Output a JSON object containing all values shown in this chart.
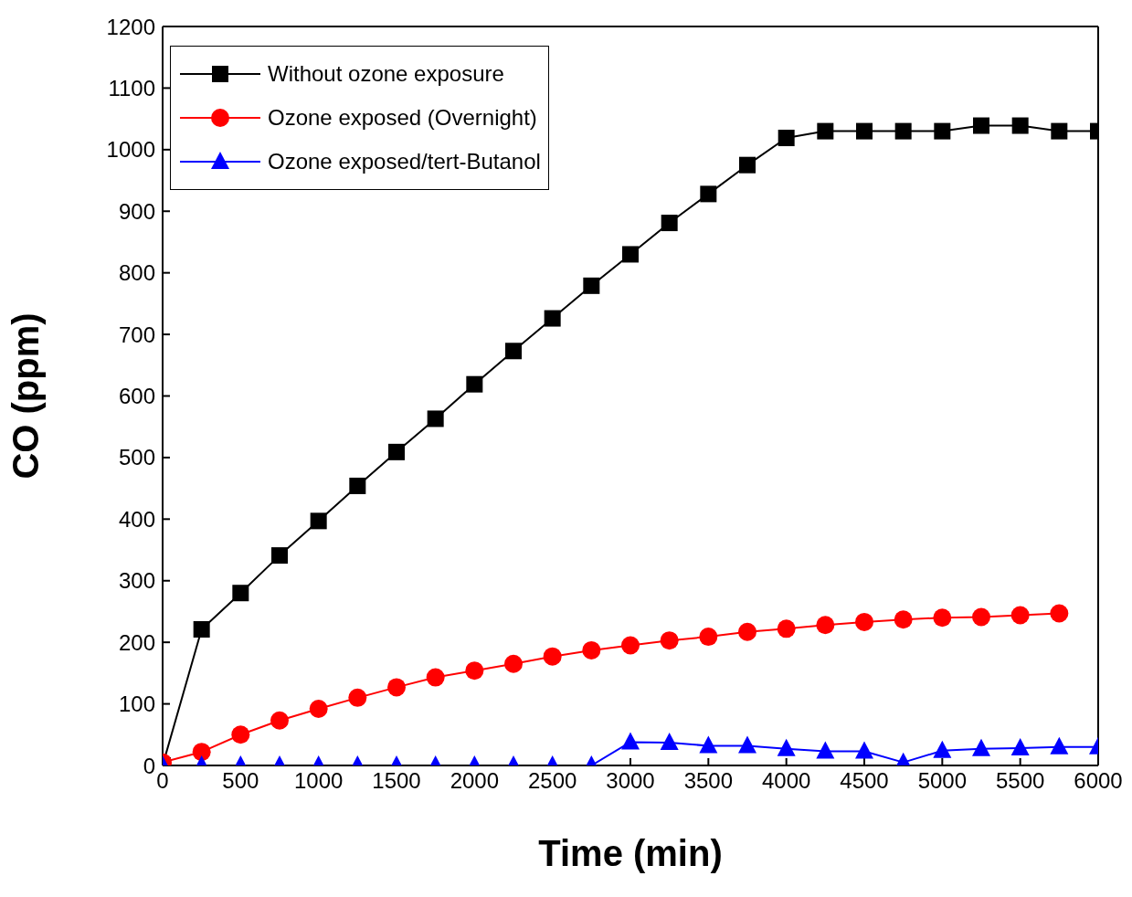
{
  "chart_data": {
    "type": "line",
    "xlabel": "Time (min)",
    "ylabel": "CO (ppm)",
    "xlim": [
      0,
      6000
    ],
    "ylim": [
      0,
      1200
    ],
    "xticks": [
      0,
      500,
      1000,
      1500,
      2000,
      2500,
      3000,
      3500,
      4000,
      4500,
      5000,
      5500,
      6000
    ],
    "yticks": [
      0,
      100,
      200,
      300,
      400,
      500,
      600,
      700,
      800,
      900,
      1000,
      1100,
      1200
    ],
    "legend": "top left",
    "line_style": "solid",
    "series": [
      {
        "name": "Without ozone exposure",
        "color": "#000000",
        "marker": "square",
        "x": [
          0,
          250,
          500,
          750,
          1000,
          1250,
          1500,
          1750,
          2000,
          2250,
          2500,
          2750,
          3000,
          3250,
          3500,
          3750,
          4000,
          4250,
          4500,
          4750,
          5000,
          5250,
          5500,
          5750,
          6000
        ],
        "values": [
          0,
          221,
          280,
          341,
          397,
          454,
          509,
          563,
          619,
          673,
          726,
          779,
          830,
          881,
          928,
          975,
          1019,
          1030,
          1030,
          1030,
          1030,
          1039,
          1039,
          1030,
          1030
        ]
      },
      {
        "name": "Ozone exposed (Overnight)",
        "color": "#ff0000",
        "marker": "circle",
        "x": [
          0,
          250,
          500,
          750,
          1000,
          1250,
          1500,
          1750,
          2000,
          2250,
          2500,
          2750,
          3000,
          3250,
          3500,
          3750,
          4000,
          4250,
          4500,
          4750,
          5000,
          5250,
          5500,
          5750
        ],
        "values": [
          5,
          22,
          50,
          73,
          92,
          110,
          127,
          143,
          154,
          165,
          177,
          187,
          195,
          203,
          209,
          217,
          222,
          228,
          233,
          237,
          240,
          241,
          244,
          247
        ]
      },
      {
        "name": "Ozone exposed/tert-Butanol",
        "color": "#0000ff",
        "marker": "triangle",
        "x": [
          0,
          250,
          500,
          750,
          1000,
          1250,
          1500,
          1750,
          2000,
          2250,
          2500,
          2750,
          3000,
          3250,
          3500,
          3750,
          4000,
          4250,
          4500,
          4750,
          5000,
          5250,
          5500,
          5750,
          6000
        ],
        "values": [
          0,
          0,
          0,
          0,
          0,
          0,
          0,
          0,
          0,
          0,
          0,
          0,
          38,
          37,
          32,
          32,
          27,
          23,
          23,
          5,
          24,
          27,
          28,
          30,
          30
        ]
      }
    ]
  }
}
